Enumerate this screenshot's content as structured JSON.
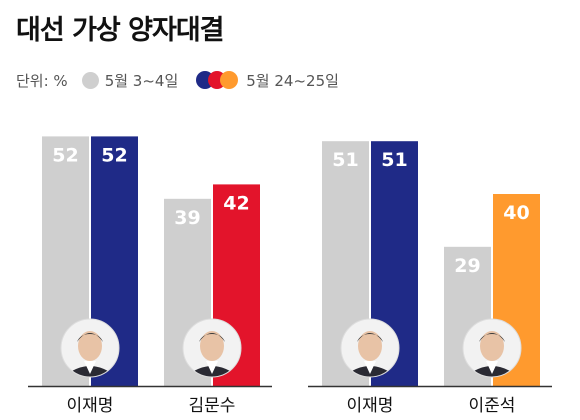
{
  "header": {
    "title": "대선 가상 양자대결"
  },
  "legend": {
    "unit": "단위: %",
    "before": "5월 3~4일",
    "after": "5월 24~25일"
  },
  "colors": {
    "before": "#cfcfcf",
    "lee_jae_myung": "#1f2a87",
    "kim_moon_soo": "#e3142b",
    "lee_jun_seok": "#ff9a2e",
    "axis": "#333333"
  },
  "chart_data": [
    {
      "type": "bar",
      "categories": [
        "이재명",
        "김문수"
      ],
      "series": [
        {
          "name": "5월 3~4일",
          "values": [
            52,
            39
          ]
        },
        {
          "name": "5월 24~25일",
          "values": [
            52,
            42
          ]
        }
      ]
    },
    {
      "type": "bar",
      "categories": [
        "이재명",
        "이준석"
      ],
      "series": [
        {
          "name": "5월 3~4일",
          "values": [
            51,
            29
          ]
        },
        {
          "name": "5월 24~25일",
          "values": [
            51,
            40
          ]
        }
      ]
    }
  ]
}
